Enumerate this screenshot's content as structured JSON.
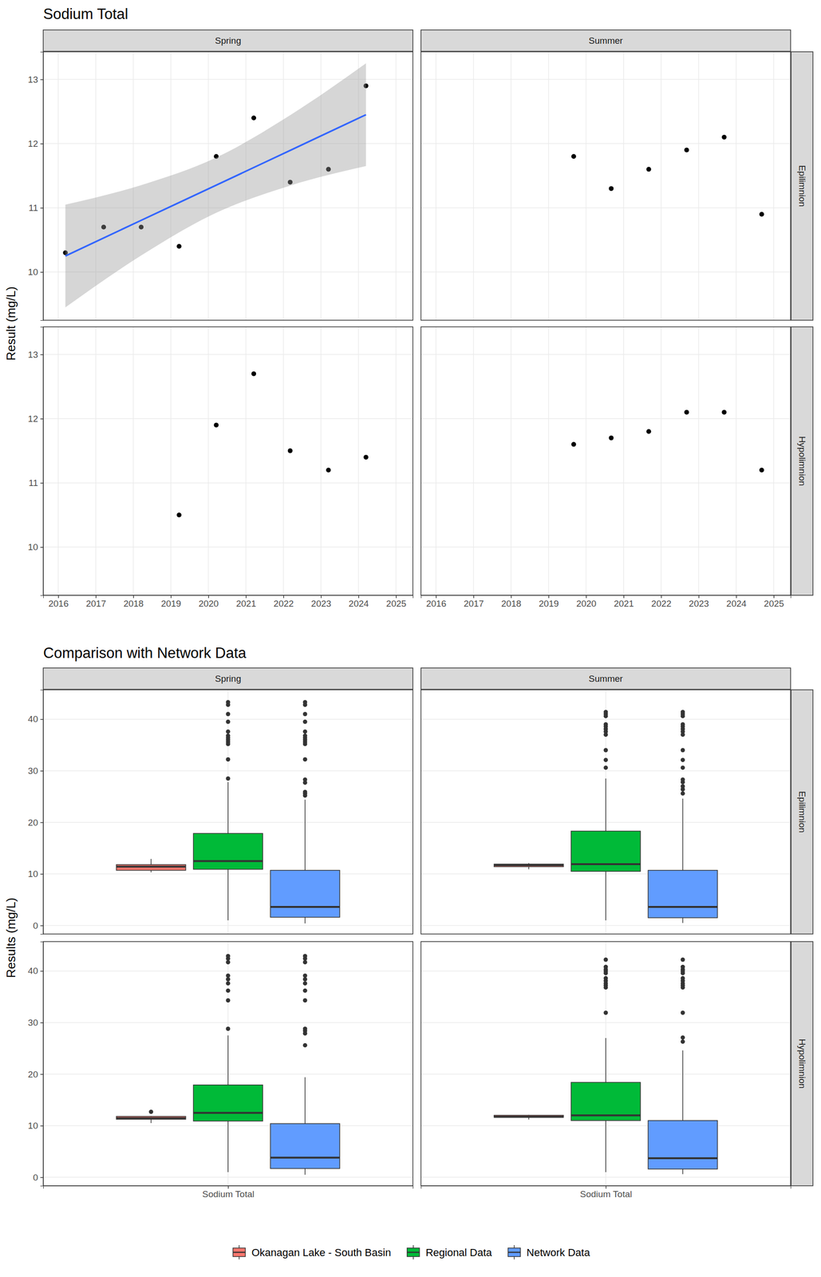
{
  "chart_data": [
    {
      "type": "scatter",
      "title": "Sodium Total",
      "y_label": "Result (mg/L)",
      "columns": [
        "Spring",
        "Summer"
      ],
      "rows": [
        "Epilimnion",
        "Hypolimnion"
      ],
      "xlim": [
        2015.6,
        2025.45
      ],
      "xticks": [
        2016,
        2017,
        2018,
        2019,
        2020,
        2021,
        2022,
        2023,
        2024,
        2025
      ],
      "ylim": [
        9.25,
        13.43
      ],
      "yticks": [
        10,
        11,
        12,
        13
      ],
      "grid": true,
      "marker": "circle",
      "panels": [
        {
          "x": [
            2016.19,
            2017.21,
            2018.21,
            2019.22,
            2020.21,
            2021.21,
            2022.18,
            2023.2,
            2024.2
          ],
          "values": [
            10.3,
            10.7,
            10.7,
            10.4,
            11.8,
            12.4,
            11.4,
            11.6,
            12.9
          ],
          "fit": {
            "color": "#3366FF",
            "x": [
              2016.19,
              2018.19,
              2020.2,
              2022.2,
              2024.2
            ],
            "values": [
              10.25,
              10.8,
              11.35,
              11.9,
              12.45
            ],
            "lower": [
              9.45,
              10.25,
              10.92,
              11.35,
              11.65
            ],
            "upper": [
              11.05,
              11.35,
              11.78,
              12.45,
              13.25
            ]
          }
        },
        {
          "x": [
            2019.67,
            2020.67,
            2021.67,
            2022.68,
            2023.68,
            2024.68
          ],
          "values": [
            11.8,
            11.3,
            11.6,
            11.9,
            12.1,
            10.9
          ]
        },
        {
          "x": [
            2019.22,
            2020.21,
            2021.21,
            2022.18,
            2023.2,
            2024.2
          ],
          "values": [
            10.5,
            11.9,
            12.7,
            11.5,
            11.2,
            11.4
          ]
        },
        {
          "x": [
            2019.67,
            2020.67,
            2021.67,
            2022.68,
            2023.68,
            2024.68
          ],
          "values": [
            11.6,
            11.7,
            11.8,
            12.1,
            12.1,
            11.2
          ]
        }
      ]
    },
    {
      "type": "box",
      "title": "Comparison with Network Data",
      "y_label": "Results (mg/L)",
      "columns": [
        "Spring",
        "Summer"
      ],
      "rows": [
        "Epilimnion",
        "Hypolimnion"
      ],
      "categories": [
        "Sodium Total"
      ],
      "series": [
        {
          "name": "Okanagan Lake - South Basin",
          "color": "#F8766D"
        },
        {
          "name": "Regional Data",
          "color": "#00BA38"
        },
        {
          "name": "Network Data",
          "color": "#619CFF"
        }
      ],
      "ylim": [
        -1.65,
        45.7
      ],
      "yticks": [
        0,
        10,
        20,
        30,
        40
      ],
      "grid": true,
      "legend": "bottom",
      "panels": [
        {
          "boxes": [
            {
              "whisker_low": 10.3,
              "q1": 10.7,
              "median": 11.4,
              "q3": 11.8,
              "whisker_high": 12.9,
              "outliers": []
            },
            {
              "whisker_low": 1.0,
              "q1": 10.9,
              "median": 12.5,
              "q3": 17.85,
              "whisker_high": 27.8,
              "outliers": [
                28.5,
                32.2,
                35.2,
                35.6,
                36.0,
                36.4,
                36.8,
                37.6,
                39.5,
                41.0,
                42.8,
                43.3
              ]
            },
            {
              "whisker_low": 0.4,
              "q1": 1.6,
              "median": 3.6,
              "q3": 10.7,
              "whisker_high": 24.4,
              "outliers": [
                25.2,
                25.6,
                25.9,
                27.7,
                28.3,
                32.2,
                35.2,
                35.6,
                36.0,
                36.4,
                36.8,
                37.6,
                39.5,
                41.0,
                42.8,
                43.3
              ]
            }
          ]
        },
        {
          "boxes": [
            {
              "whisker_low": 10.9,
              "q1": 11.4,
              "median": 11.7,
              "q3": 11.9,
              "whisker_high": 12.1,
              "outliers": []
            },
            {
              "whisker_low": 1.0,
              "q1": 10.5,
              "median": 11.9,
              "q3": 18.3,
              "whisker_high": 28.5,
              "outliers": [
                30.6,
                32.1,
                34.0,
                37.0,
                37.6,
                38.1,
                38.6,
                39.0,
                40.6,
                41.0,
                41.4
              ]
            },
            {
              "whisker_low": 0.5,
              "q1": 1.5,
              "median": 3.6,
              "q3": 10.7,
              "whisker_high": 24.6,
              "outliers": [
                25.6,
                26.4,
                27.0,
                27.8,
                28.3,
                30.6,
                32.1,
                34.0,
                37.0,
                37.6,
                38.1,
                38.6,
                39.0,
                40.6,
                41.0,
                41.4
              ]
            }
          ]
        },
        {
          "boxes": [
            {
              "whisker_low": 10.5,
              "q1": 11.25,
              "median": 11.45,
              "q3": 11.8,
              "whisker_high": 11.9,
              "outliers": [
                12.7
              ]
            },
            {
              "whisker_low": 1.0,
              "q1": 10.9,
              "median": 12.5,
              "q3": 17.9,
              "whisker_high": 27.5,
              "outliers": [
                28.8,
                34.3,
                36.2,
                37.6,
                38.4,
                39.1,
                41.7,
                42.4,
                42.9
              ]
            },
            {
              "whisker_low": 0.5,
              "q1": 1.7,
              "median": 3.8,
              "q3": 10.4,
              "whisker_high": 19.4,
              "outliers": [
                25.6,
                27.9,
                28.4,
                28.8,
                34.3,
                36.2,
                37.6,
                38.4,
                39.1,
                41.7,
                42.4,
                42.9
              ]
            }
          ]
        },
        {
          "boxes": [
            {
              "whisker_low": 11.2,
              "q1": 11.625,
              "median": 11.75,
              "q3": 12.025,
              "whisker_high": 12.1,
              "outliers": []
            },
            {
              "whisker_low": 1.0,
              "q1": 11.0,
              "median": 12.0,
              "q3": 18.4,
              "whisker_high": 27.0,
              "outliers": [
                31.9,
                36.8,
                37.2,
                37.6,
                38.1,
                38.6,
                39.6,
                40.0,
                40.3,
                40.8,
                42.2
              ]
            },
            {
              "whisker_low": 0.6,
              "q1": 1.6,
              "median": 3.7,
              "q3": 11.0,
              "whisker_high": 24.6,
              "outliers": [
                26.3,
                27.1,
                31.9,
                36.8,
                37.2,
                37.6,
                38.1,
                38.6,
                39.6,
                40.0,
                40.3,
                40.8,
                42.2
              ]
            }
          ]
        }
      ]
    }
  ]
}
